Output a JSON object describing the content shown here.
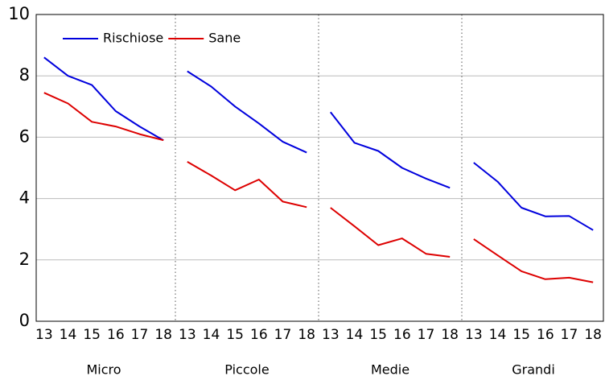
{
  "chart_data": {
    "type": "line",
    "groups": [
      "Micro",
      "Piccole",
      "Medie",
      "Grandi"
    ],
    "categories": [
      "13",
      "14",
      "15",
      "16",
      "17",
      "18",
      "13",
      "14",
      "15",
      "16",
      "17",
      "18",
      "13",
      "14",
      "15",
      "16",
      "17",
      "18",
      "13",
      "14",
      "15",
      "16",
      "17",
      "18"
    ],
    "series": [
      {
        "name": "Rischiose",
        "color": "#0000dd",
        "values": [
          8.6,
          8.0,
          7.7,
          6.85,
          6.35,
          5.9,
          8.15,
          7.65,
          7.0,
          6.45,
          5.85,
          5.5,
          6.82,
          5.82,
          5.55,
          5.0,
          4.65,
          4.35,
          5.17,
          4.55,
          3.7,
          3.42,
          3.43,
          2.97
        ]
      },
      {
        "name": "Sane",
        "color": "#dd0000",
        "values": [
          7.45,
          7.1,
          6.5,
          6.35,
          6.1,
          5.9,
          5.2,
          4.75,
          4.27,
          4.62,
          3.9,
          3.72,
          3.7,
          3.1,
          2.48,
          2.7,
          2.2,
          2.1,
          2.68,
          2.15,
          1.63,
          1.37,
          1.42,
          1.27
        ]
      }
    ],
    "ylim": [
      0,
      10
    ],
    "yticks": [
      0,
      2,
      4,
      6,
      8,
      10
    ],
    "grid": true,
    "legend": "upper left"
  }
}
